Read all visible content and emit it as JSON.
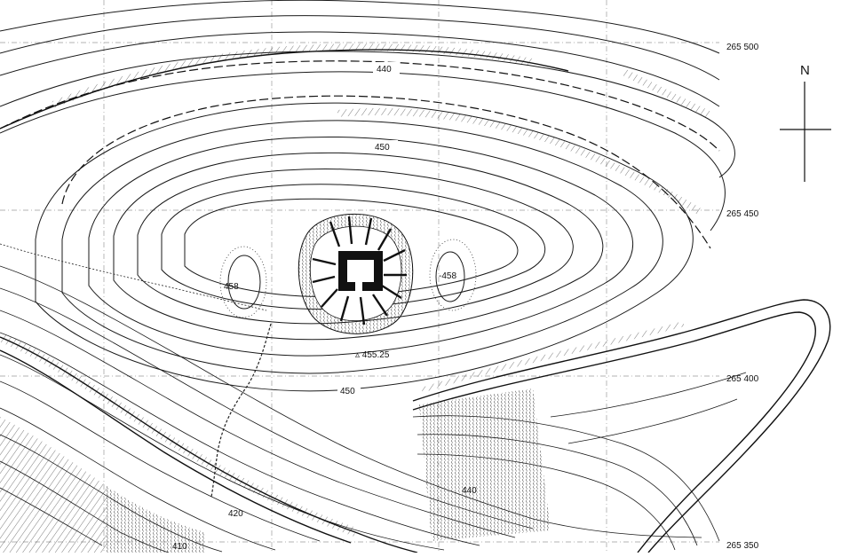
{
  "map": {
    "north_label": "N",
    "grid_labels": [
      "265 500",
      "265 450",
      "265 400",
      "265 350"
    ],
    "contour_labels": [
      "440",
      "450",
      "450",
      "440",
      "420",
      "410"
    ],
    "spot_heights": [
      "458",
      "-458",
      "▵ 455.25"
    ]
  }
}
